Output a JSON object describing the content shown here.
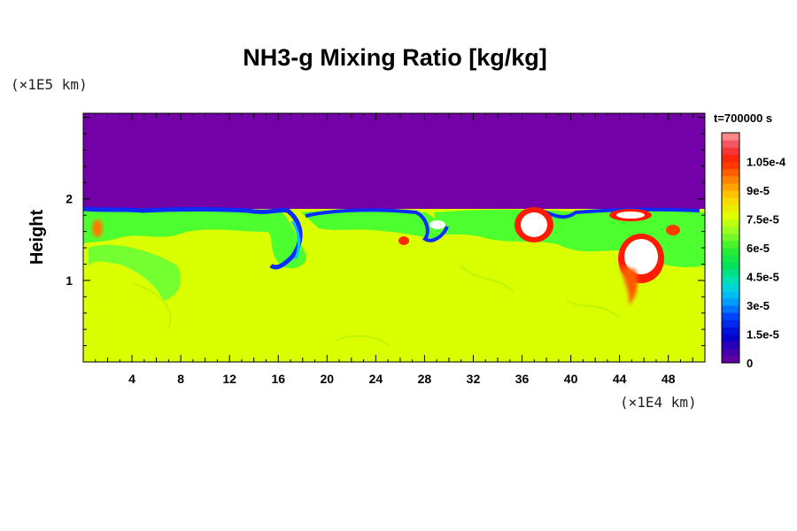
{
  "chart_data": {
    "type": "heatmap",
    "title": "NH3-g Mixing Ratio [kg/kg]",
    "ylabel": "Height",
    "x_unit_label": "(×1E4 km)",
    "y_unit_label": "(×1E5 km)",
    "time_label": "t=700000 s",
    "x_ticks": [
      "4",
      "8",
      "12",
      "16",
      "20",
      "24",
      "28",
      "32",
      "36",
      "40",
      "44",
      "48"
    ],
    "y_ticks": [
      "1",
      "2"
    ],
    "xlim": [
      0,
      51
    ],
    "ylim": [
      0,
      3.05
    ],
    "colorbar": {
      "ticks": [
        "1.05e-4",
        "9e-5",
        "7.5e-5",
        "6e-5",
        "4.5e-5",
        "3e-5",
        "1.5e-5",
        "0"
      ],
      "range": [
        0,
        0.00012
      ]
    },
    "regions_description": {
      "upper_layer_value": 0,
      "lower_layer_value": 7.5e-05,
      "interface_height": 1.85
    },
    "colors": {
      "upper": "#7400a8",
      "lower": "#d9ff00",
      "mid": "#38ff38",
      "blue": "#0022ff",
      "red": "#ff1a00",
      "white": "#ffffff"
    }
  }
}
